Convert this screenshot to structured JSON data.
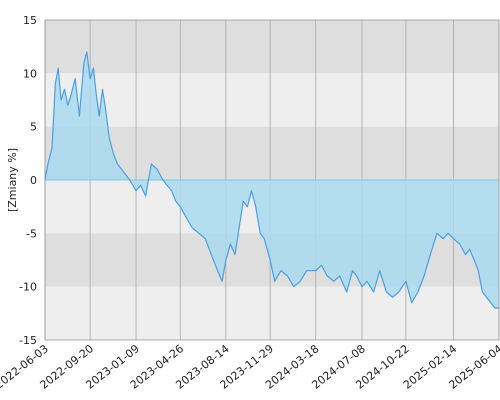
{
  "chart_data": {
    "type": "area",
    "title": "",
    "xlabel": "",
    "ylabel": "[Zmiany %]",
    "ylim": [
      -15,
      15
    ],
    "yticks": [
      "15",
      "10",
      "5",
      "0",
      "-5",
      "-10",
      "-15"
    ],
    "xlim": [
      "2022-06-03",
      "2025-06-04"
    ],
    "xticks": [
      "2022-06-03",
      "2022-09-20",
      "2023-01-09",
      "2023-04-26",
      "2023-08-14",
      "2023-11-29",
      "2024-03-18",
      "2024-07-08",
      "2024-10-22",
      "2025-02-14",
      "2025-06-04"
    ],
    "grid": true,
    "legend": "none",
    "colors": {
      "line": "#4a9fe6",
      "fill": "#a9d9ee",
      "band_dark": "#dedede",
      "band_light": "#eeeeee",
      "grid": "#b4b4b4",
      "zero_line": "#7fc6e2"
    },
    "series": [
      {
        "x": [
          "2022-06-03",
          "2022-06-10",
          "2022-06-20",
          "2022-06-28",
          "2022-07-05",
          "2022-07-12",
          "2022-07-20",
          "2022-07-28",
          "2022-08-05",
          "2022-08-15",
          "2022-08-25",
          "2022-09-05",
          "2022-09-12",
          "2022-09-20",
          "2022-09-28",
          "2022-10-05",
          "2022-10-12",
          "2022-10-20",
          "2022-10-28",
          "2022-11-05",
          "2022-11-15",
          "2022-11-25",
          "2022-12-05",
          "2022-12-15",
          "2022-12-25",
          "2023-01-09",
          "2023-01-20",
          "2023-02-01",
          "2023-02-15",
          "2023-03-01",
          "2023-03-15",
          "2023-03-25",
          "2023-04-05",
          "2023-04-15",
          "2023-04-26",
          "2023-05-10",
          "2023-05-25",
          "2023-06-10",
          "2023-06-25",
          "2023-07-05",
          "2023-07-15",
          "2023-07-25",
          "2023-08-05",
          "2023-08-14",
          "2023-08-25",
          "2023-09-05",
          "2023-09-15",
          "2023-09-25",
          "2023-10-05",
          "2023-10-15",
          "2023-10-25",
          "2023-11-05",
          "2023-11-15",
          "2023-11-29",
          "2023-12-10",
          "2023-12-25",
          "2024-01-10",
          "2024-01-25",
          "2024-02-10",
          "2024-02-25",
          "2024-03-05",
          "2024-03-18",
          "2024-04-01",
          "2024-04-15",
          "2024-05-01",
          "2024-05-15",
          "2024-06-01",
          "2024-06-15",
          "2024-06-25",
          "2024-07-08",
          "2024-07-20",
          "2024-08-05",
          "2024-08-20",
          "2024-09-05",
          "2024-09-20",
          "2024-10-05",
          "2024-10-22",
          "2024-11-05",
          "2024-11-20",
          "2024-12-05",
          "2024-12-20",
          "2025-01-05",
          "2025-01-20",
          "2025-02-01",
          "2025-02-14",
          "2025-03-01",
          "2025-03-15",
          "2025-03-25",
          "2025-04-05",
          "2025-04-15",
          "2025-04-25",
          "2025-05-05",
          "2025-05-15",
          "2025-05-25",
          "2025-06-04"
        ],
        "values": [
          0.0,
          1.5,
          3.0,
          9.0,
          10.5,
          7.5,
          8.5,
          7.0,
          8.0,
          9.5,
          6.0,
          11.0,
          12.0,
          9.5,
          10.5,
          8.0,
          6.0,
          8.5,
          6.5,
          4.0,
          2.5,
          1.5,
          1.0,
          0.5,
          0.0,
          -1.0,
          -0.5,
          -1.5,
          1.5,
          1.0,
          0.0,
          -0.5,
          -1.0,
          -2.0,
          -2.5,
          -3.5,
          -4.5,
          -5.0,
          -5.5,
          -6.5,
          -7.5,
          -8.5,
          -9.5,
          -7.5,
          -6.0,
          -7.0,
          -4.5,
          -2.0,
          -2.5,
          -1.0,
          -2.5,
          -5.0,
          -5.5,
          -7.5,
          -9.5,
          -8.5,
          -9.0,
          -10.0,
          -9.5,
          -8.5,
          -8.5,
          -8.5,
          -8.0,
          -9.0,
          -9.5,
          -9.0,
          -10.5,
          -8.5,
          -9.0,
          -10.0,
          -9.5,
          -10.5,
          -8.5,
          -10.5,
          -11.0,
          -10.5,
          -9.5,
          -11.5,
          -10.5,
          -9.0,
          -7.0,
          -5.0,
          -5.5,
          -5.0,
          -5.5,
          -6.0,
          -7.0,
          -6.5,
          -7.5,
          -8.5,
          -10.5,
          -11.0,
          -11.5,
          -12.0,
          -12.0
        ]
      }
    ]
  }
}
